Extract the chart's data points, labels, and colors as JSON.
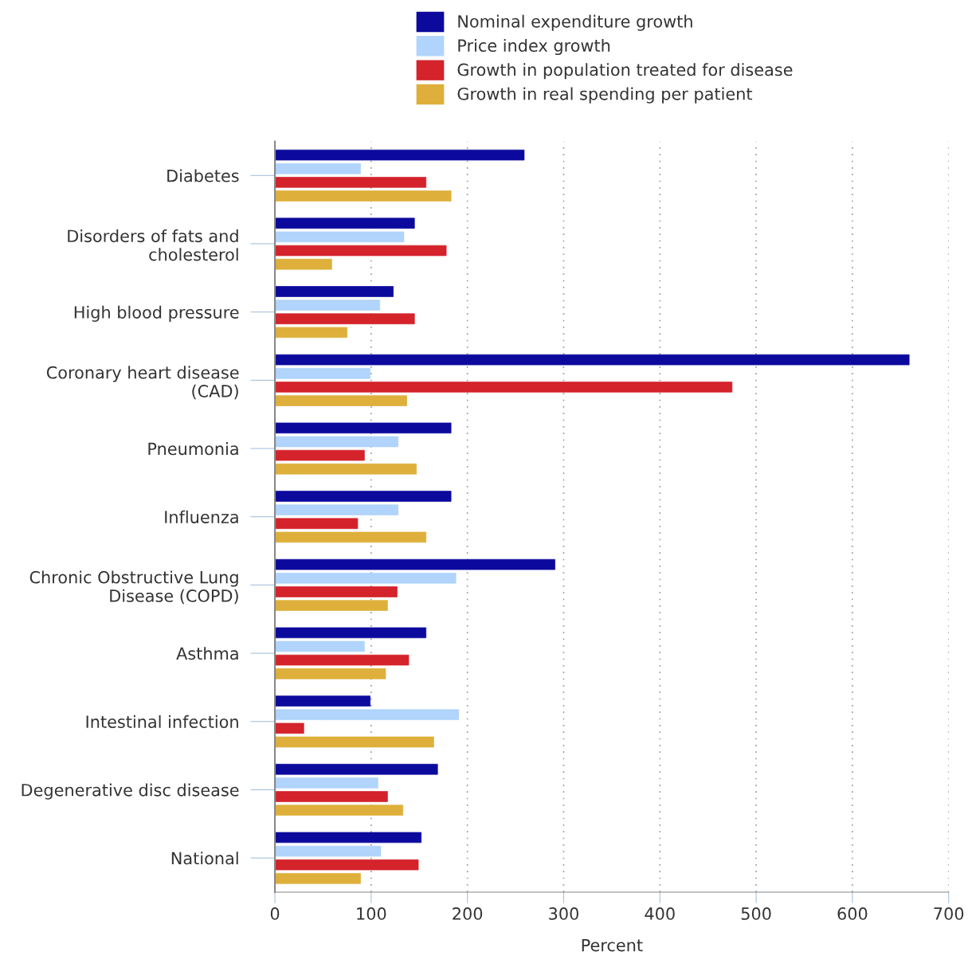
{
  "chart_data": {
    "type": "bar",
    "orientation": "horizontal",
    "xlabel": "Percent",
    "categories": [
      "Diabetes",
      "Disorders of fats and\ncholesterol",
      "High blood pressure",
      "Coronary heart disease\n(CAD)",
      "Pneumonia",
      "Influenza",
      "Chronic Obstructive Lung\nDisease (COPD)",
      "Asthma",
      "Intestinal infection",
      "Degenerative disc disease",
      "National"
    ],
    "series": [
      {
        "name": "Nominal expenditure growth",
        "color": "#0c0a9c",
        "values": [
          259,
          145,
          123,
          659,
          183,
          183,
          291,
          157,
          99,
          169,
          152
        ]
      },
      {
        "name": "Price index growth",
        "color": "#b0d4fc",
        "values": [
          89,
          134,
          109,
          99,
          128,
          128,
          188,
          93,
          191,
          107,
          110
        ]
      },
      {
        "name": "Growth in population treated for disease",
        "color": "#d4232b",
        "values": [
          157,
          178,
          145,
          475,
          93,
          86,
          127,
          139,
          30,
          117,
          149
        ]
      },
      {
        "name": "Growth in real spending per patient",
        "color": "#deb03b",
        "values": [
          183,
          59,
          75,
          137,
          147,
          157,
          117,
          115,
          165,
          133,
          89
        ]
      }
    ],
    "xlim": [
      0,
      700
    ],
    "xticks": [
      0,
      100,
      200,
      300,
      400,
      500,
      600,
      700
    ],
    "grid": "x",
    "legend": "top"
  }
}
